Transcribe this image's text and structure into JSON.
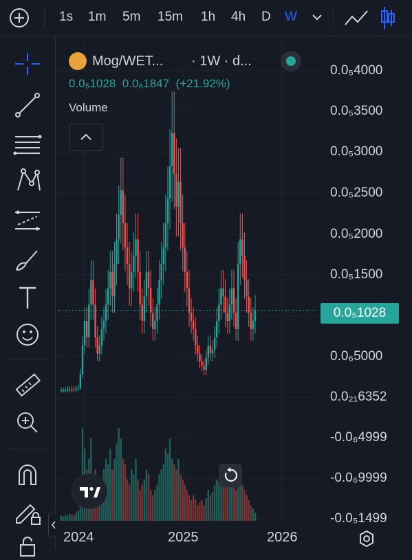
{
  "toolbar": {
    "intervals": [
      "1s",
      "1m",
      "5m",
      "15m",
      "1h",
      "4h",
      "D",
      "W"
    ],
    "active_interval": "W",
    "icons": [
      "add-symbol-icon",
      "chevron-down-icon",
      "line-chart-icon",
      "candle-chart-icon"
    ]
  },
  "left_tools": [
    "crosshair-icon",
    "trend-line-icon",
    "fib-icon",
    "pattern-icon",
    "forecast-icon",
    "brush-icon",
    "text-icon",
    "emoji-icon",
    "ruler-icon",
    "zoom-in-icon",
    "magnet-icon",
    "lock-drawing-icon",
    "lock-icon"
  ],
  "legend": {
    "symbol": "Mog/WET...",
    "interval": "· 1W · d...",
    "value_a": "0.0₅1028",
    "value_b": "0.0₆1847",
    "change": "(+21.92%)",
    "volume_label": "Volume"
  },
  "price_axis": {
    "labels": [
      "0.0₅4000",
      "0.0₅3500",
      "0.0₅3000",
      "0.0₅2500",
      "0.0₅2000",
      "0.0₅1500",
      "0.0₆5000",
      "0.0₂₁6352",
      "-0.0₆4999",
      "-0.0₆9999",
      "-0.0₅1499"
    ],
    "last_price": "0.0₅1028"
  },
  "time_axis": {
    "labels": [
      "2024",
      "2025",
      "2026"
    ]
  },
  "colors": {
    "up": "#26a69a",
    "down": "#ef5350",
    "accent": "#2962ff",
    "bg": "#161a25"
  },
  "chart_data": {
    "type": "candlestick",
    "title": "Mog/WET... · 1W · d...",
    "xlabel": "",
    "ylabel": "",
    "x_range": [
      "2023-10",
      "2026-04"
    ],
    "ylim_price_e6": [
      0,
      4.0
    ],
    "price_unit_note": "0.0₅4000 = 0.000004",
    "last_price": "0.0₅1028",
    "change": "+21.92%",
    "weekly_close_e6": [
      0.05,
      0.05,
      0.05,
      0.06,
      0.06,
      0.05,
      0.06,
      0.07,
      0.08,
      0.25,
      0.6,
      0.9,
      0.7,
      1.1,
      1.4,
      1.1,
      0.7,
      0.5,
      0.6,
      0.8,
      0.9,
      1.1,
      1.3,
      1.5,
      1.2,
      1.6,
      1.9,
      2.2,
      2.5,
      2.1,
      1.8,
      1.6,
      1.3,
      1.5,
      1.7,
      1.9,
      1.5,
      1.1,
      0.9,
      1.2,
      1.5,
      1.3,
      1.0,
      0.8,
      0.9,
      1.1,
      1.4,
      1.6,
      1.8,
      2.1,
      2.4,
      2.8,
      3.2,
      2.7,
      2.3,
      2.6,
      2.1,
      1.8,
      1.5,
      1.3,
      1.0,
      0.9,
      0.8,
      0.6,
      0.5,
      0.4,
      0.35,
      0.3,
      0.45,
      0.6,
      0.5,
      0.55,
      0.7,
      0.9,
      1.1,
      1.3,
      1.2,
      1.0,
      0.9,
      1.1,
      1.3,
      1.0,
      0.8,
      1.6,
      1.9,
      1.7,
      1.4,
      1.2,
      1.0,
      0.8,
      0.9,
      1.03
    ],
    "volume_rel": [
      0.05,
      0.04,
      0.06,
      0.05,
      0.07,
      0.06,
      0.05,
      0.08,
      0.1,
      0.3,
      0.9,
      0.7,
      0.5,
      0.6,
      0.8,
      0.4,
      0.5,
      0.3,
      0.35,
      0.4,
      0.5,
      0.6,
      0.55,
      0.7,
      0.5,
      0.6,
      0.75,
      0.9,
      0.8,
      0.6,
      0.55,
      0.4,
      0.35,
      0.5,
      0.45,
      0.6,
      0.4,
      0.3,
      0.35,
      0.4,
      0.5,
      0.45,
      0.3,
      0.25,
      0.3,
      0.35,
      0.45,
      0.5,
      0.55,
      0.7,
      0.65,
      0.8,
      0.6,
      0.55,
      0.5,
      0.6,
      0.45,
      0.4,
      0.35,
      0.3,
      0.25,
      0.2,
      0.25,
      0.2,
      0.15,
      0.18,
      0.2,
      0.15,
      0.22,
      0.3,
      0.25,
      0.28,
      0.35,
      0.4,
      0.38,
      0.45,
      0.5,
      0.4,
      0.35,
      0.45,
      0.5,
      0.4,
      0.3,
      0.45,
      0.5,
      0.35,
      0.3,
      0.25,
      0.2,
      0.15,
      0.12,
      0.08
    ]
  }
}
